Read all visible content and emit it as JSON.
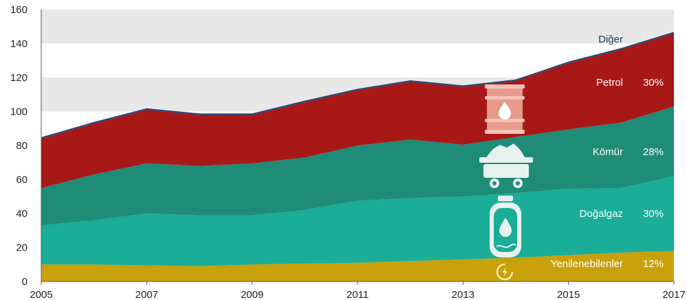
{
  "chart_data": {
    "type": "area",
    "stacked": true,
    "x": [
      2005,
      2006,
      2007,
      2008,
      2009,
      2010,
      2011,
      2012,
      2013,
      2014,
      2015,
      2016,
      2017
    ],
    "xticks": [
      "2005",
      "2007",
      "2009",
      "2011",
      "2013",
      "2015",
      "2017"
    ],
    "yticks": [
      "0",
      "20",
      "40",
      "60",
      "80",
      "100",
      "120",
      "140",
      "160"
    ],
    "ylim": [
      0,
      160
    ],
    "grid": "alternating horizontal bands",
    "series": [
      {
        "name": "Yenilenebilenler",
        "share": "12%",
        "color": "#c9a10a",
        "values": [
          10,
          10,
          9.5,
          9,
          10,
          10.5,
          11,
          12,
          13,
          14,
          15.5,
          17,
          18
        ]
      },
      {
        "name": "Doğalgaz",
        "share": "30%",
        "color": "#1aad97",
        "values": [
          23,
          26,
          30.5,
          30,
          29,
          31.5,
          36.5,
          37,
          37,
          38,
          39,
          38,
          44
        ]
      },
      {
        "name": "Kömür",
        "share": "28%",
        "color": "#1f8c78",
        "values": [
          22,
          27,
          29.5,
          29,
          30.5,
          31,
          32.5,
          34.5,
          30.5,
          33,
          35,
          38.5,
          41
        ]
      },
      {
        "name": "Petrol",
        "share": "30%",
        "color": "#a81817",
        "values": [
          29,
          30,
          31.5,
          30,
          28.5,
          32.5,
          32.5,
          34,
          34,
          33,
          39,
          43,
          43
        ]
      },
      {
        "name": "Diğer",
        "share": "",
        "color": "#23487a",
        "values": [
          0.5,
          0.5,
          0.5,
          0.5,
          0.5,
          0.5,
          0.5,
          0.5,
          0.5,
          0.5,
          0.5,
          0.5,
          0.5
        ]
      }
    ],
    "icons": [
      "oil-barrel-icon",
      "coal-cart-icon",
      "gas-cylinder-icon",
      "renewable-energy-icon"
    ]
  }
}
